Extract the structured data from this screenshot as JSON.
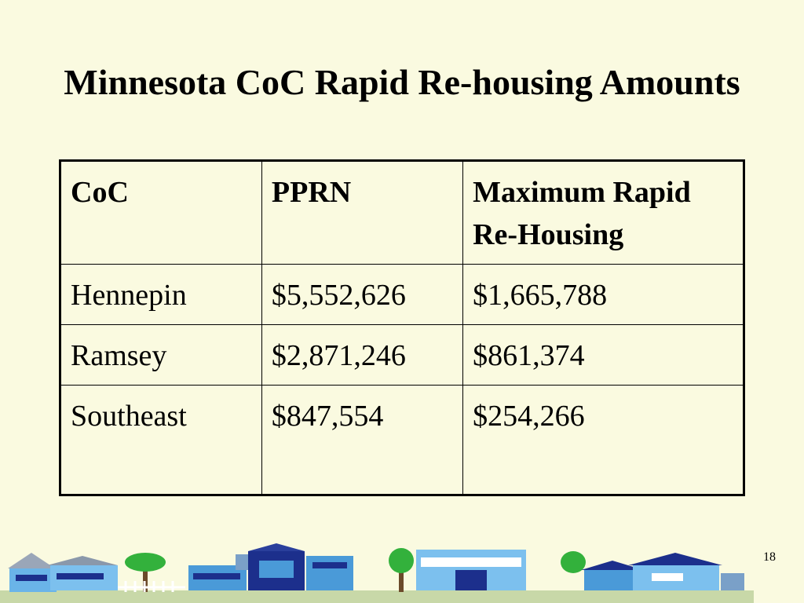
{
  "slide": {
    "title": "Minnesota CoC Rapid Re-housing Amounts",
    "page_number": "18"
  },
  "table": {
    "headers": [
      "CoC",
      "PPRN",
      "Maximum Rapid Re-Housing"
    ],
    "rows": [
      [
        "Hennepin",
        "$5,552,626",
        "$1,665,788"
      ],
      [
        "Ramsey",
        "$2,871,246",
        "$861,374"
      ],
      [
        "Southeast",
        "$847,554",
        "$254,266"
      ]
    ]
  },
  "footer_art": {
    "icon": "town-street-scene-icon",
    "colors": {
      "sky_houses": "#4a9ad8",
      "roof_navy": "#1c2f8c",
      "trees": "#33b13c",
      "fence": "#ffffff"
    }
  }
}
